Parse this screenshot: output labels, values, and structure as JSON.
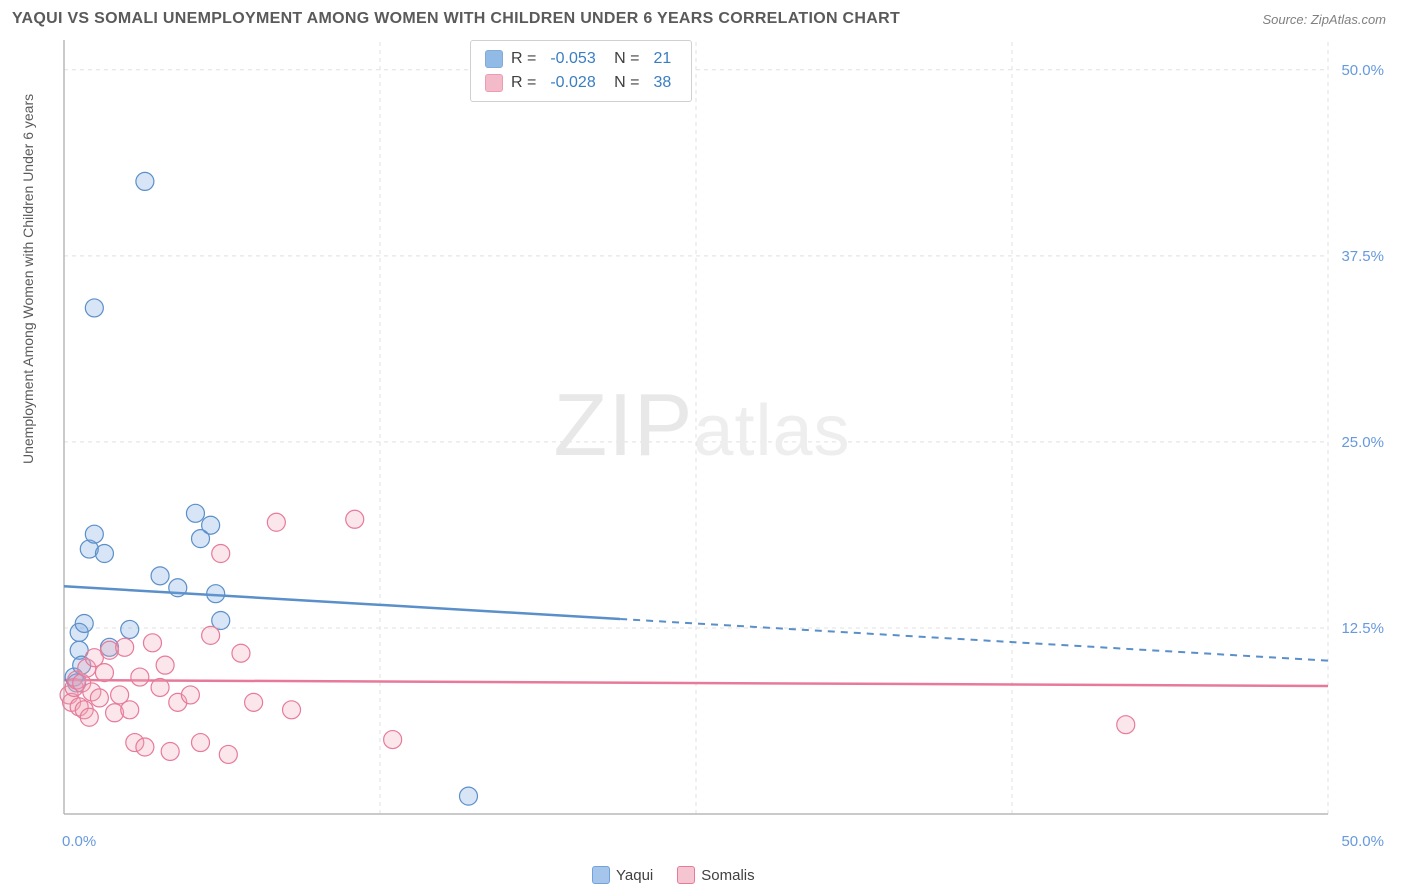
{
  "header": {
    "title": "YAQUI VS SOMALI UNEMPLOYMENT AMONG WOMEN WITH CHILDREN UNDER 6 YEARS CORRELATION CHART",
    "source": "Source: ZipAtlas.com"
  },
  "chart": {
    "type": "scatter",
    "ylabel": "Unemployment Among Women with Children Under 6 years",
    "xlim": [
      0,
      50
    ],
    "ylim": [
      0,
      52
    ],
    "yticks": [
      12.5,
      25.0,
      37.5,
      50.0
    ],
    "ytick_labels": [
      "12.5%",
      "25.0%",
      "37.5%",
      "50.0%"
    ],
    "xticks": [
      0,
      12.5,
      25,
      37.5,
      50
    ],
    "x_label_min": "0.0%",
    "x_label_max": "50.0%",
    "background_color": "#ffffff",
    "grid_color": "#e0e0e0",
    "axis_color": "#b8b8b8",
    "tick_label_color": "#6699dd",
    "marker_radius": 9,
    "marker_stroke_width": 1.2,
    "marker_fill_opacity": 0.28,
    "watermark": "ZIPatlas",
    "series": [
      {
        "name": "Yaqui",
        "color": "#6ea3e0",
        "stroke": "#5a8fc9",
        "R": "-0.053",
        "N": "21",
        "regression": {
          "x1": 0,
          "y1": 15.3,
          "x2": 50,
          "y2": 10.3,
          "dash_from_x": 22
        },
        "points": [
          [
            0.4,
            9.2
          ],
          [
            0.5,
            8.8
          ],
          [
            0.6,
            11.0
          ],
          [
            0.6,
            12.2
          ],
          [
            0.7,
            10.0
          ],
          [
            0.8,
            12.8
          ],
          [
            1.0,
            17.8
          ],
          [
            1.2,
            18.8
          ],
          [
            1.2,
            34.0
          ],
          [
            1.6,
            17.5
          ],
          [
            1.8,
            11.2
          ],
          [
            2.6,
            12.4
          ],
          [
            3.2,
            42.5
          ],
          [
            3.8,
            16.0
          ],
          [
            4.5,
            15.2
          ],
          [
            5.2,
            20.2
          ],
          [
            5.4,
            18.5
          ],
          [
            5.8,
            19.4
          ],
          [
            6.0,
            14.8
          ],
          [
            6.2,
            13.0
          ],
          [
            16.0,
            1.2
          ]
        ]
      },
      {
        "name": "Somalis",
        "color": "#f0a5b8",
        "stroke": "#e77a9a",
        "R": "-0.028",
        "N": "38",
        "regression": {
          "x1": 0,
          "y1": 9.0,
          "x2": 50,
          "y2": 8.6,
          "dash_from_x": 50
        },
        "points": [
          [
            0.2,
            8.0
          ],
          [
            0.3,
            7.5
          ],
          [
            0.4,
            8.5
          ],
          [
            0.5,
            9.0
          ],
          [
            0.6,
            7.2
          ],
          [
            0.7,
            8.8
          ],
          [
            0.8,
            7.0
          ],
          [
            0.9,
            9.8
          ],
          [
            1.0,
            6.5
          ],
          [
            1.1,
            8.2
          ],
          [
            1.2,
            10.5
          ],
          [
            1.4,
            7.8
          ],
          [
            1.6,
            9.5
          ],
          [
            1.8,
            11.0
          ],
          [
            2.0,
            6.8
          ],
          [
            2.2,
            8.0
          ],
          [
            2.4,
            11.2
          ],
          [
            2.6,
            7.0
          ],
          [
            2.8,
            4.8
          ],
          [
            3.0,
            9.2
          ],
          [
            3.2,
            4.5
          ],
          [
            3.5,
            11.5
          ],
          [
            3.8,
            8.5
          ],
          [
            4.0,
            10.0
          ],
          [
            4.2,
            4.2
          ],
          [
            4.5,
            7.5
          ],
          [
            5.0,
            8.0
          ],
          [
            5.4,
            4.8
          ],
          [
            5.8,
            12.0
          ],
          [
            6.2,
            17.5
          ],
          [
            6.5,
            4.0
          ],
          [
            7.0,
            10.8
          ],
          [
            7.5,
            7.5
          ],
          [
            8.4,
            19.6
          ],
          [
            9.0,
            7.0
          ],
          [
            11.5,
            19.8
          ],
          [
            13.0,
            5.0
          ],
          [
            42.0,
            6.0
          ]
        ]
      }
    ],
    "legend_bottom": [
      {
        "label": "Yaqui",
        "color": "#a5c5ea",
        "stroke": "#6ea3e0"
      },
      {
        "label": "Somalis",
        "color": "#f5c5d2",
        "stroke": "#e77a9a"
      }
    ]
  }
}
